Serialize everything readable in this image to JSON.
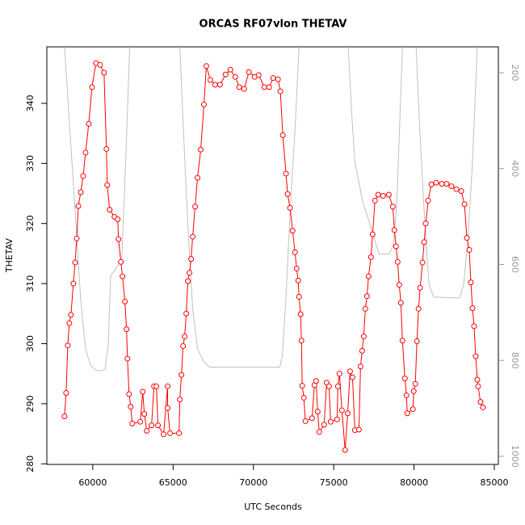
{
  "chart_data": {
    "type": "line",
    "title": "ORCAS RF07vlon THETAV",
    "x_label": "UTC Seconds",
    "y_label": "THETAV",
    "xlim": [
      57140,
      85250
    ],
    "xticks": [
      60000,
      65000,
      70000,
      75000,
      80000,
      85000
    ],
    "ylim": [
      279.9,
      349.4
    ],
    "yticks": [
      280,
      290,
      300,
      310,
      320,
      330,
      340
    ],
    "y2lim": [
      1017,
      146
    ],
    "y2ticks": [
      200,
      400,
      600,
      800,
      1000
    ],
    "series": [
      {
        "name": "THETAV",
        "color": "#ff0000",
        "markers": true,
        "x": [
          58240,
          58340,
          58440,
          58540,
          58640,
          58790,
          58900,
          59000,
          59100,
          59250,
          59400,
          59550,
          59750,
          59950,
          60200,
          60450,
          60700,
          60850,
          60900,
          61050,
          61350,
          61550,
          61600,
          61750,
          61850,
          62000,
          62100,
          62160,
          62260,
          62360,
          62460,
          62960,
          63110,
          63210,
          63360,
          63660,
          63810,
          63960,
          64060,
          64410,
          64660,
          64660,
          64810,
          65370,
          65420,
          65520,
          65620,
          65720,
          65820,
          65920,
          66020,
          66120,
          66220,
          66370,
          66520,
          66720,
          66920,
          67070,
          67320,
          67620,
          67920,
          68270,
          68570,
          68870,
          69120,
          69420,
          69720,
          70080,
          70330,
          70680,
          70980,
          71230,
          71530,
          71680,
          71830,
          72030,
          72130,
          72280,
          72440,
          72590,
          72690,
          72790,
          72840,
          72940,
          72990,
          73040,
          73140,
          73240,
          73650,
          73800,
          73900,
          74000,
          74100,
          74400,
          74560,
          74710,
          74810,
          75210,
          75260,
          75360,
          75510,
          75710,
          75870,
          76020,
          76170,
          76320,
          76570,
          76670,
          76770,
          76870,
          76970,
          77070,
          77170,
          77320,
          77420,
          77570,
          77770,
          78070,
          78430,
          78680,
          78780,
          78880,
          78980,
          79080,
          79180,
          79280,
          79430,
          79530,
          79580,
          79930,
          79980,
          80080,
          80180,
          80280,
          80380,
          80530,
          80630,
          80730,
          80880,
          81080,
          81380,
          81730,
          82030,
          82330,
          82640,
          82940,
          83140,
          83290,
          83440,
          83540,
          83640,
          83740,
          83840,
          83940,
          83990,
          84140,
          84290
        ],
        "values": [
          287.9,
          291.8,
          299.7,
          303.4,
          304.8,
          310.0,
          313.5,
          317.5,
          322.9,
          325.2,
          327.9,
          331.8,
          336.6,
          342.7,
          346.7,
          346.4,
          345.1,
          332.4,
          326.4,
          322.3,
          321.1,
          320.7,
          317.4,
          313.6,
          311.2,
          307.0,
          302.4,
          297.5,
          291.6,
          289.5,
          286.7,
          287.0,
          292.0,
          288.3,
          285.5,
          286.4,
          292.9,
          292.9,
          286.4,
          284.9,
          292.9,
          289.3,
          285.1,
          285.1,
          290.7,
          294.8,
          299.6,
          301.2,
          305.0,
          310.4,
          311.8,
          314.1,
          317.8,
          322.8,
          327.6,
          332.3,
          339.8,
          346.2,
          343.9,
          343.1,
          343.1,
          344.8,
          345.6,
          344.4,
          342.7,
          342.4,
          345.2,
          344.4,
          344.7,
          342.7,
          342.7,
          344.2,
          344.0,
          342.0,
          334.7,
          328.3,
          324.9,
          322.6,
          318.8,
          315.2,
          312.5,
          310.5,
          307.8,
          304.9,
          300.5,
          293.0,
          291.0,
          287.1,
          287.6,
          293.1,
          293.8,
          288.7,
          285.3,
          286.5,
          293.5,
          292.9,
          287.0,
          287.4,
          292.9,
          295.0,
          288.9,
          282.3,
          288.4,
          295.4,
          294.4,
          285.6,
          285.7,
          296.2,
          298.8,
          301.2,
          305.8,
          307.9,
          311.2,
          314.4,
          318.2,
          323.8,
          324.8,
          324.6,
          324.8,
          322.8,
          318.9,
          316.2,
          313.6,
          309.8,
          306.8,
          300.5,
          294.2,
          291.4,
          288.4,
          289.1,
          292.1,
          293.3,
          300.4,
          305.8,
          309.3,
          313.5,
          316.9,
          320.0,
          323.8,
          326.5,
          326.8,
          326.6,
          326.6,
          326.2,
          325.7,
          325.4,
          323.2,
          317.6,
          315.6,
          310.2,
          305.9,
          302.9,
          297.9,
          294.0,
          292.9,
          290.3,
          289.4
        ]
      },
      {
        "color": "#c0c0c0",
        "axis": "y2",
        "markers": false,
        "x": [
          58240,
          58540,
          58900,
          59250,
          59550,
          59850,
          60150,
          60450,
          60760,
          60960,
          61110,
          61260,
          61550,
          61800,
          61950,
          62100,
          62300,
          null,
          65420,
          65620,
          65920,
          66220,
          66520,
          66920,
          67270,
          67770,
          71640,
          71790,
          71990,
          72290,
          72590,
          72840,
          null,
          75900,
          76150,
          76320,
          76820,
          77320,
          77620,
          77820,
          78480,
          78730,
          78930,
          79080,
          79280,
          null,
          80130,
          80330,
          80630,
          80930,
          81230,
          82840,
          83090,
          83340,
          83640,
          83940
        ],
        "values": [
          146,
          302,
          488,
          675,
          776,
          810,
          820,
          822,
          818,
          768,
          624,
          617,
          603,
          590,
          471,
          334,
          146,
          null,
          146,
          302,
          522,
          692,
          776,
          803,
          814,
          814,
          814,
          793,
          692,
          488,
          319,
          146,
          null,
          146,
          302,
          387,
          471,
          522,
          556,
          578,
          578,
          556,
          471,
          334,
          146,
          null,
          146,
          302,
          488,
          641,
          668,
          670,
          641,
          556,
          387,
          146
        ]
      }
    ]
  }
}
